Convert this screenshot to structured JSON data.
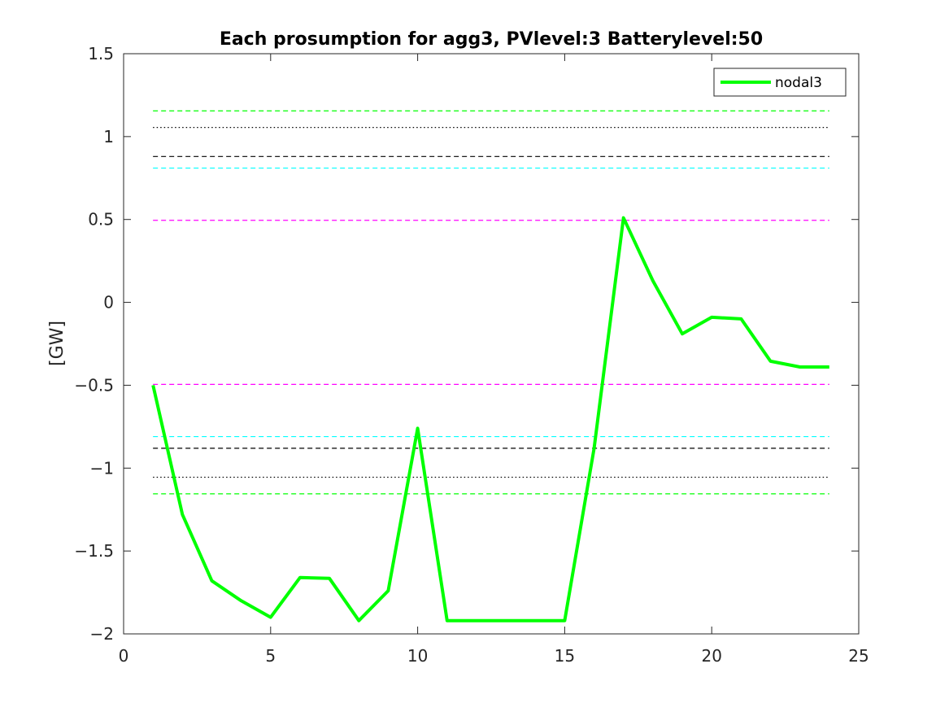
{
  "chart_data": {
    "type": "line",
    "title": "Each prosumption for agg3, PVlevel:3 Batterylevel:50",
    "xlabel": "",
    "ylabel": "[GW]",
    "xlim": [
      0,
      25
    ],
    "ylim": [
      -2,
      1.5
    ],
    "xticks": [
      0,
      5,
      10,
      15,
      20,
      25
    ],
    "yticks": [
      -2,
      -1.5,
      -1,
      -0.5,
      0,
      0.5,
      1,
      1.5
    ],
    "xtick_labels": [
      "0",
      "5",
      "10",
      "15",
      "20",
      "25"
    ],
    "ytick_labels": [
      "−2",
      "−1.5",
      "−1",
      "−0.5",
      "0",
      "0.5",
      "1",
      "1.5"
    ],
    "grid": false,
    "legend_position": "top-right",
    "series": [
      {
        "name": "nodal3",
        "color": "#00ff00",
        "x": [
          1,
          2,
          3,
          4,
          5,
          6,
          7,
          8,
          9,
          10,
          11,
          12,
          13,
          14,
          15,
          16,
          17,
          18,
          19,
          20,
          21,
          22,
          23,
          24
        ],
        "y": [
          -0.5,
          -1.28,
          -1.68,
          -1.8,
          -1.9,
          -1.66,
          -1.665,
          -1.92,
          -1.74,
          -0.76,
          -1.92,
          -1.92,
          -1.92,
          -1.92,
          -1.92,
          -0.88,
          0.51,
          0.13,
          -0.19,
          -0.09,
          -0.1,
          -0.355,
          -0.39,
          -0.39
        ]
      }
    ],
    "reference_lines": [
      {
        "y": 1.155,
        "color": "#00ff00",
        "style": "dashed"
      },
      {
        "y": 1.055,
        "color": "#000000",
        "style": "dotted"
      },
      {
        "y": 0.88,
        "color": "#000000",
        "style": "dashed"
      },
      {
        "y": 0.81,
        "color": "#00ffff",
        "style": "dashed"
      },
      {
        "y": 0.495,
        "color": "#ff00ff",
        "style": "dashed"
      },
      {
        "y": -0.495,
        "color": "#ff00ff",
        "style": "dashed"
      },
      {
        "y": -0.81,
        "color": "#00ffff",
        "style": "dashed"
      },
      {
        "y": -0.88,
        "color": "#000000",
        "style": "dashed"
      },
      {
        "y": -1.055,
        "color": "#000000",
        "style": "dotted"
      },
      {
        "y": -1.155,
        "color": "#00ff00",
        "style": "dashed"
      }
    ],
    "reference_line_xrange": [
      1,
      24
    ]
  }
}
